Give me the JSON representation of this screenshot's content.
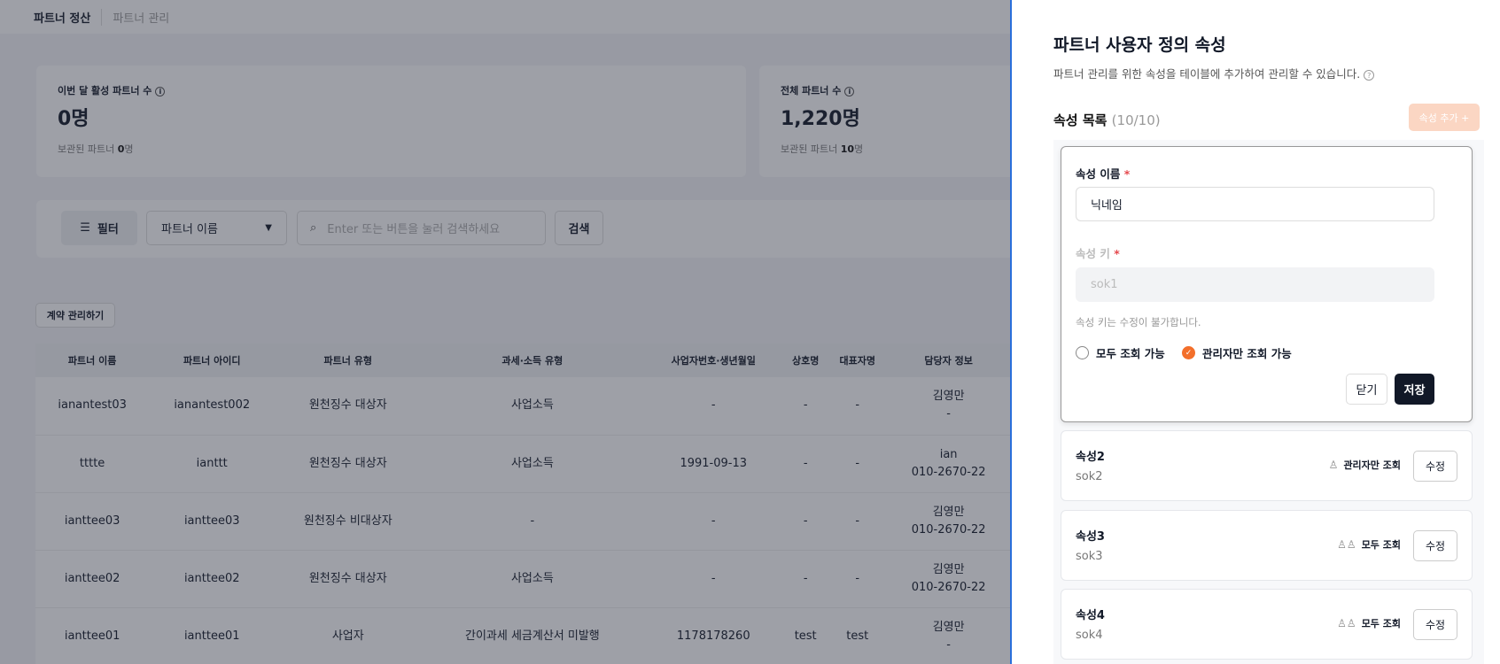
{
  "nav": {
    "tabs": [
      "파트너 정산",
      "파트너 관리"
    ]
  },
  "stats": [
    {
      "label": "이번 달 활성 파트너 수",
      "value": "0명",
      "archived_label": "보관된 파트너",
      "archived_value": "0",
      "archived_unit": "명"
    },
    {
      "label": "전체 파트너 수",
      "value": "1,220명",
      "archived_label": "보관된 파트너",
      "archived_value": "10",
      "archived_unit": "명"
    }
  ],
  "filter": {
    "button": "필터",
    "select": "파트너 이름",
    "search_placeholder": "Enter 또는 버튼을 눌러 검색하세요",
    "search_button": "검색"
  },
  "contract_button": "계약 관리하기",
  "table": {
    "columns": [
      "파트너 이름",
      "파트너 아이디",
      "파트너 유형",
      "과세·소득 유형",
      "사업자번호·생년월일",
      "상호명",
      "대표자명",
      "담당자 정보"
    ],
    "rows": [
      [
        "ianantest03",
        "ianantest002",
        "원천징수 대상자",
        "사업소득",
        "-",
        "-",
        "-",
        "김영만",
        "-"
      ],
      [
        "tttte",
        "ianttt",
        "원천징수 대상자",
        "사업소득",
        "1991-09-13",
        "-",
        "-",
        "ian",
        "010-2670-22"
      ],
      [
        "ianttee03",
        "ianttee03",
        "원천징수 비대상자",
        "-",
        "-",
        "-",
        "-",
        "김영만",
        "010-2670-22"
      ],
      [
        "ianttee02",
        "ianttee02",
        "원천징수 대상자",
        "사업소득",
        "-",
        "-",
        "-",
        "김영만",
        "010-2670-22"
      ],
      [
        "ianttee01",
        "ianttee01",
        "사업자",
        "간이과세 세금계산서 미발행",
        "1178178260",
        "test",
        "test",
        "김영만",
        "-"
      ]
    ]
  },
  "panel": {
    "title": "파트너 사용자 정의 속성",
    "subtitle": "파트너 관리를 위한 속성을 테이블에 추가하여 관리할 수 있습니다.",
    "list_title": "속성 목록",
    "list_count": "(10/10)",
    "add_button": "속성 추가 +",
    "form": {
      "name_label": "속성 이름",
      "name_value": "닉네임",
      "key_label": "속성 키",
      "key_value": "sok1",
      "key_help": "속성 키는 수정이 불가합니다.",
      "radio_all": "모두 조회 가능",
      "radio_admin": "관리자만 조회 가능",
      "selected": "radio_admin",
      "close": "닫기",
      "save": "저장"
    },
    "items": [
      {
        "name": "속성2",
        "key": "sok2",
        "visibility": "관리자만 조회",
        "icon": "user-icon",
        "edit": "수정"
      },
      {
        "name": "속성3",
        "key": "sok3",
        "visibility": "모두 조회",
        "icon": "users-icon",
        "edit": "수정"
      },
      {
        "name": "속성4",
        "key": "sok4",
        "visibility": "모두 조회",
        "icon": "users-icon",
        "edit": "수정"
      }
    ]
  },
  "colors": {
    "accent": "#f36f2b",
    "primary_button": "#111827",
    "panel_border": "#2a6fdb"
  }
}
